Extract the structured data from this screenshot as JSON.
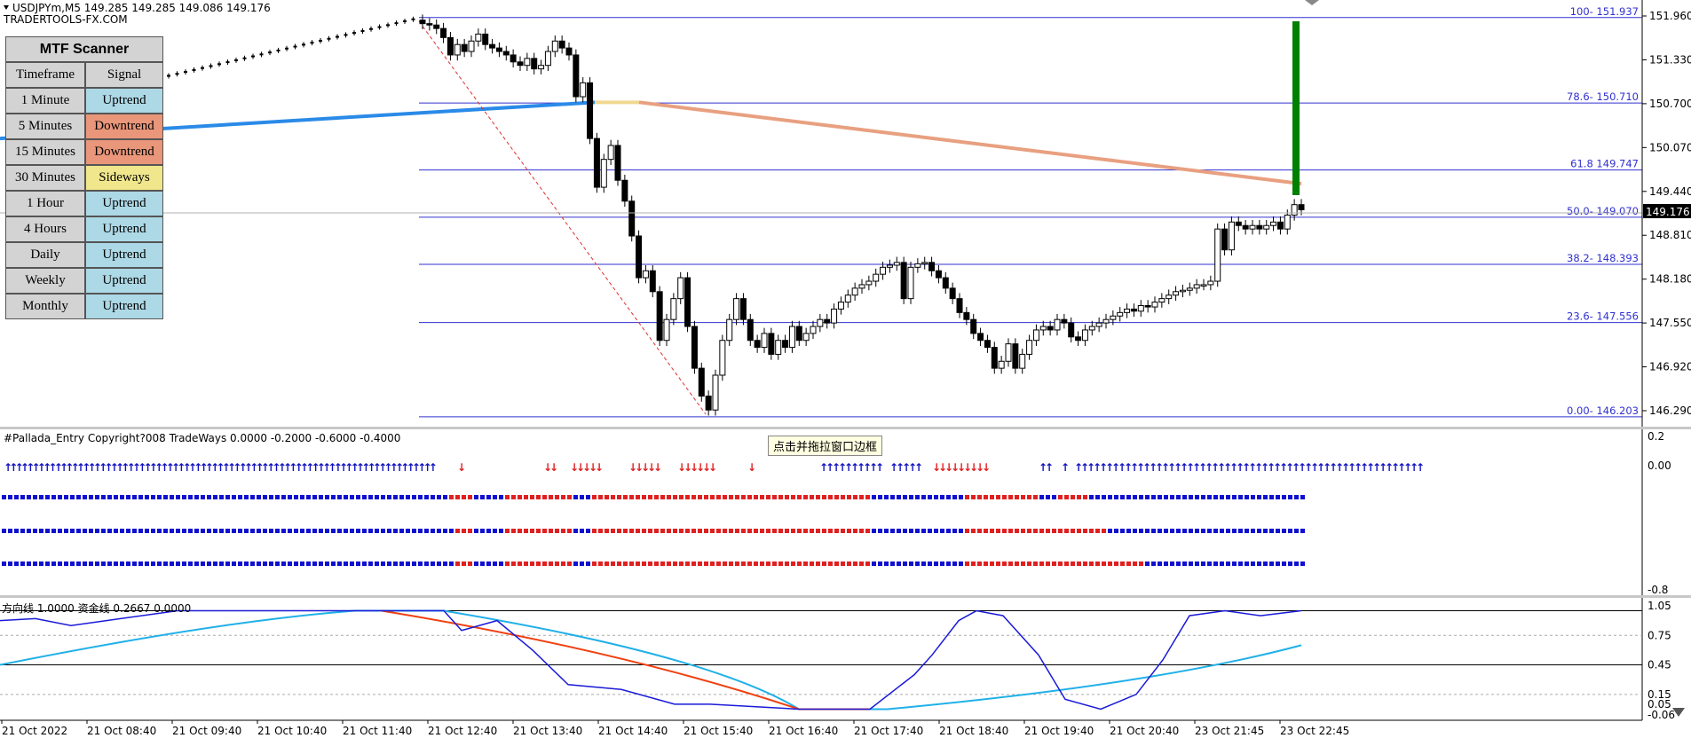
{
  "header": {
    "symbol_line": "USDJPYm,M5  149.285 149.285 149.086 149.176",
    "brand": "TRADERTOOLS-FX.COM"
  },
  "mtf_scanner": {
    "title": "MTF Scanner",
    "col_timeframe": "Timeframe",
    "col_signal": "Signal",
    "rows": [
      {
        "tf": "1 Minute",
        "signal": "Uptrend"
      },
      {
        "tf": "5 Minutes",
        "signal": "Downtrend"
      },
      {
        "tf": "15 Minutes",
        "signal": "Downtrend"
      },
      {
        "tf": "30 Minutes",
        "signal": "Sideways"
      },
      {
        "tf": "1 Hour",
        "signal": "Uptrend"
      },
      {
        "tf": "4 Hours",
        "signal": "Uptrend"
      },
      {
        "tf": "Daily",
        "signal": "Uptrend"
      },
      {
        "tf": "Weekly",
        "signal": "Uptrend"
      },
      {
        "tf": "Monthly",
        "signal": "Uptrend"
      }
    ],
    "colors": {
      "Uptrend": "#add8e6",
      "Downtrend": "#e9967a",
      "Sideways": "#f0e68c"
    }
  },
  "price_axis": {
    "ticks": [
      "151.960",
      "151.330",
      "150.700",
      "150.070",
      "149.440",
      "148.810",
      "148.180",
      "147.550",
      "146.920",
      "146.290"
    ],
    "current": "149.176"
  },
  "fib_levels": [
    {
      "label": "100- 151.937",
      "price": 151.937
    },
    {
      "label": "78.6- 150.710",
      "price": 150.71
    },
    {
      "label": "61.8 149.747",
      "price": 149.747
    },
    {
      "label": "50.0- 149.070",
      "price": 149.07
    },
    {
      "label": "38.2- 148.393",
      "price": 148.393
    },
    {
      "label": "23.6- 147.556",
      "price": 147.556
    },
    {
      "label": "0.00- 146.203",
      "price": 146.203
    }
  ],
  "entry_indicator": {
    "title": "#Pallada_Entry Copyright?008 TradeWays 0.0000 -0.2000 -0.6000 -0.4000",
    "axis_ticks": [
      "0.2",
      "0.00",
      "-0.8"
    ]
  },
  "tooltip": "点击并拖拉窗口边框",
  "oscillator": {
    "title": "方向线 1.0000  资金线 0.2667 0.0000",
    "axis_ticks": [
      "1.05",
      "0.75",
      "0.45",
      "0.15",
      "0.05",
      "-0.06"
    ]
  },
  "time_axis": {
    "labels": [
      "21 Oct 2022",
      "21 Oct 08:40",
      "21 Oct 09:40",
      "21 Oct 10:40",
      "21 Oct 11:40",
      "21 Oct 12:40",
      "21 Oct 13:40",
      "21 Oct 14:40",
      "21 Oct 15:40",
      "21 Oct 16:40",
      "21 Oct 17:40",
      "21 Oct 18:40",
      "21 Oct 19:40",
      "21 Oct 20:40",
      "23 Oct 21:45",
      "23 Oct 22:45"
    ]
  },
  "chart_data": {
    "type": "candlestick",
    "symbol": "USDJPYm",
    "timeframe": "M5",
    "y_range": [
      146.15,
      152.1
    ],
    "closes": [
      151.85,
      151.83,
      151.78,
      151.65,
      151.4,
      151.55,
      151.45,
      151.6,
      151.7,
      151.55,
      151.5,
      151.45,
      151.4,
      151.3,
      151.25,
      151.35,
      151.2,
      151.25,
      151.45,
      151.6,
      151.5,
      151.4,
      150.8,
      151.0,
      150.2,
      149.5,
      149.9,
      150.1,
      149.6,
      149.3,
      148.8,
      148.2,
      148.3,
      148.0,
      147.3,
      147.6,
      147.9,
      148.2,
      147.5,
      146.9,
      146.5,
      146.3,
      146.8,
      147.3,
      147.6,
      147.9,
      147.6,
      147.3,
      147.2,
      147.4,
      147.1,
      147.3,
      147.2,
      147.5,
      147.3,
      147.4,
      147.5,
      147.6,
      147.55,
      147.75,
      147.85,
      147.95,
      148.05,
      148.1,
      148.15,
      148.25,
      148.35,
      148.38,
      148.42,
      147.9,
      148.35,
      148.4,
      148.42,
      148.3,
      148.2,
      148.05,
      147.9,
      147.7,
      147.6,
      147.4,
      147.3,
      147.2,
      146.9,
      147.0,
      147.25,
      146.9,
      147.1,
      147.3,
      147.45,
      147.5,
      147.45,
      147.6,
      147.55,
      147.35,
      147.3,
      147.45,
      147.5,
      147.55,
      147.6,
      147.65,
      147.7,
      147.75,
      147.72,
      147.8,
      147.78,
      147.85,
      147.9,
      147.95,
      148.0,
      148.02,
      148.05,
      148.1,
      148.1,
      148.15,
      148.9,
      148.6,
      149.0,
      148.95,
      148.9,
      148.95,
      148.9,
      148.95,
      149.0,
      148.9,
      149.1,
      149.25,
      149.176
    ],
    "moving_average": {
      "start": 150.4,
      "end": 149.55
    },
    "fib_retracement": {
      "high": 151.937,
      "low": 146.203
    },
    "oscillator_series": [
      {
        "name": "方向线",
        "value": 1.0
      },
      {
        "name": "资金线",
        "value": 0.2667
      }
    ]
  }
}
